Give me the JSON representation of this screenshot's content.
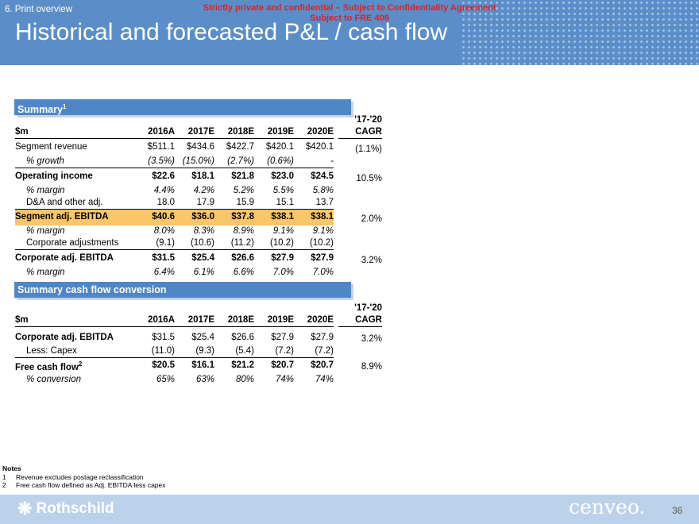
{
  "header": {
    "section": "6. Print overview",
    "confidential_line1": "Strictly private and confidential – Subject to Confidentiality Agreement",
    "confidential_line2": "Subject to FRE 408",
    "title": "Historical and forecasted P&L / cash flow"
  },
  "summary": {
    "box_title": "Summary",
    "box_title_sup": "1",
    "cagr_top": "'17-'20",
    "columns": [
      "$m",
      "2016A",
      "2017E",
      "2018E",
      "2019E",
      "2020E",
      "CAGR"
    ],
    "rows": [
      {
        "label": "Segment revenue",
        "values": [
          "$511.1",
          "$434.6",
          "$422.7",
          "$420.1",
          "$420.1"
        ],
        "cagr": "(1.1%)"
      },
      {
        "label": "% growth",
        "values": [
          "(3.5%)",
          "(15.0%)",
          "(2.7%)",
          "(0.6%)",
          "-"
        ],
        "cagr": ""
      },
      {
        "label": "Operating income",
        "values": [
          "$22.6",
          "$18.1",
          "$21.8",
          "$23.0",
          "$24.5"
        ],
        "cagr": "10.5%"
      },
      {
        "label": "% margin",
        "values": [
          "4.4%",
          "4.2%",
          "5.2%",
          "5.5%",
          "5.8%"
        ],
        "cagr": ""
      },
      {
        "label": "D&A and other adj.",
        "values": [
          "18.0",
          "17.9",
          "15.9",
          "15.1",
          "13.7"
        ],
        "cagr": ""
      },
      {
        "label": "Segment adj. EBITDA",
        "values": [
          "$40.6",
          "$36.0",
          "$37.8",
          "$38.1",
          "$38.1"
        ],
        "cagr": "2.0%"
      },
      {
        "label": "% margin",
        "values": [
          "8.0%",
          "8.3%",
          "8.9%",
          "9.1%",
          "9.1%"
        ],
        "cagr": ""
      },
      {
        "label": "Corporate adjustments",
        "values": [
          "(9.1)",
          "(10.6)",
          "(11.2)",
          "(10.2)",
          "(10.2)"
        ],
        "cagr": ""
      },
      {
        "label": "Corporate adj. EBITDA",
        "values": [
          "$31.5",
          "$25.4",
          "$26.6",
          "$27.9",
          "$27.9"
        ],
        "cagr": "3.2%"
      },
      {
        "label": "% margin",
        "values": [
          "6.4%",
          "6.1%",
          "6.6%",
          "7.0%",
          "7.0%"
        ],
        "cagr": ""
      }
    ]
  },
  "cashflow": {
    "box_title": "Summary cash flow conversion",
    "cagr_top": "'17-'20",
    "columns": [
      "$m",
      "2016A",
      "2017E",
      "2018E",
      "2019E",
      "2020E",
      "CAGR"
    ],
    "rows": [
      {
        "label": "Corporate adj. EBITDA",
        "values": [
          "$31.5",
          "$25.4",
          "$26.6",
          "$27.9",
          "$27.9"
        ],
        "cagr": "3.2%"
      },
      {
        "label": "Less: Capex",
        "values": [
          "(11.0)",
          "(9.3)",
          "(5.4)",
          "(7.2)",
          "(7.2)"
        ],
        "cagr": ""
      },
      {
        "label": "Free cash flow",
        "label_sup": "2",
        "values": [
          "$20.5",
          "$16.1",
          "$21.2",
          "$20.7",
          "$20.7"
        ],
        "cagr": "8.9%"
      },
      {
        "label": "% conversion",
        "values": [
          "65%",
          "63%",
          "80%",
          "74%",
          "74%"
        ],
        "cagr": ""
      }
    ]
  },
  "notes": {
    "heading": "Notes",
    "items": [
      {
        "num": "1",
        "text": "Revenue excludes postage reclassification"
      },
      {
        "num": "2",
        "text": "Free cash flow defined as Adj. EBITDA less capex"
      }
    ]
  },
  "footer": {
    "logo_left": "Rothschild",
    "logo_right": "cenveo.",
    "page_number": "36"
  }
}
